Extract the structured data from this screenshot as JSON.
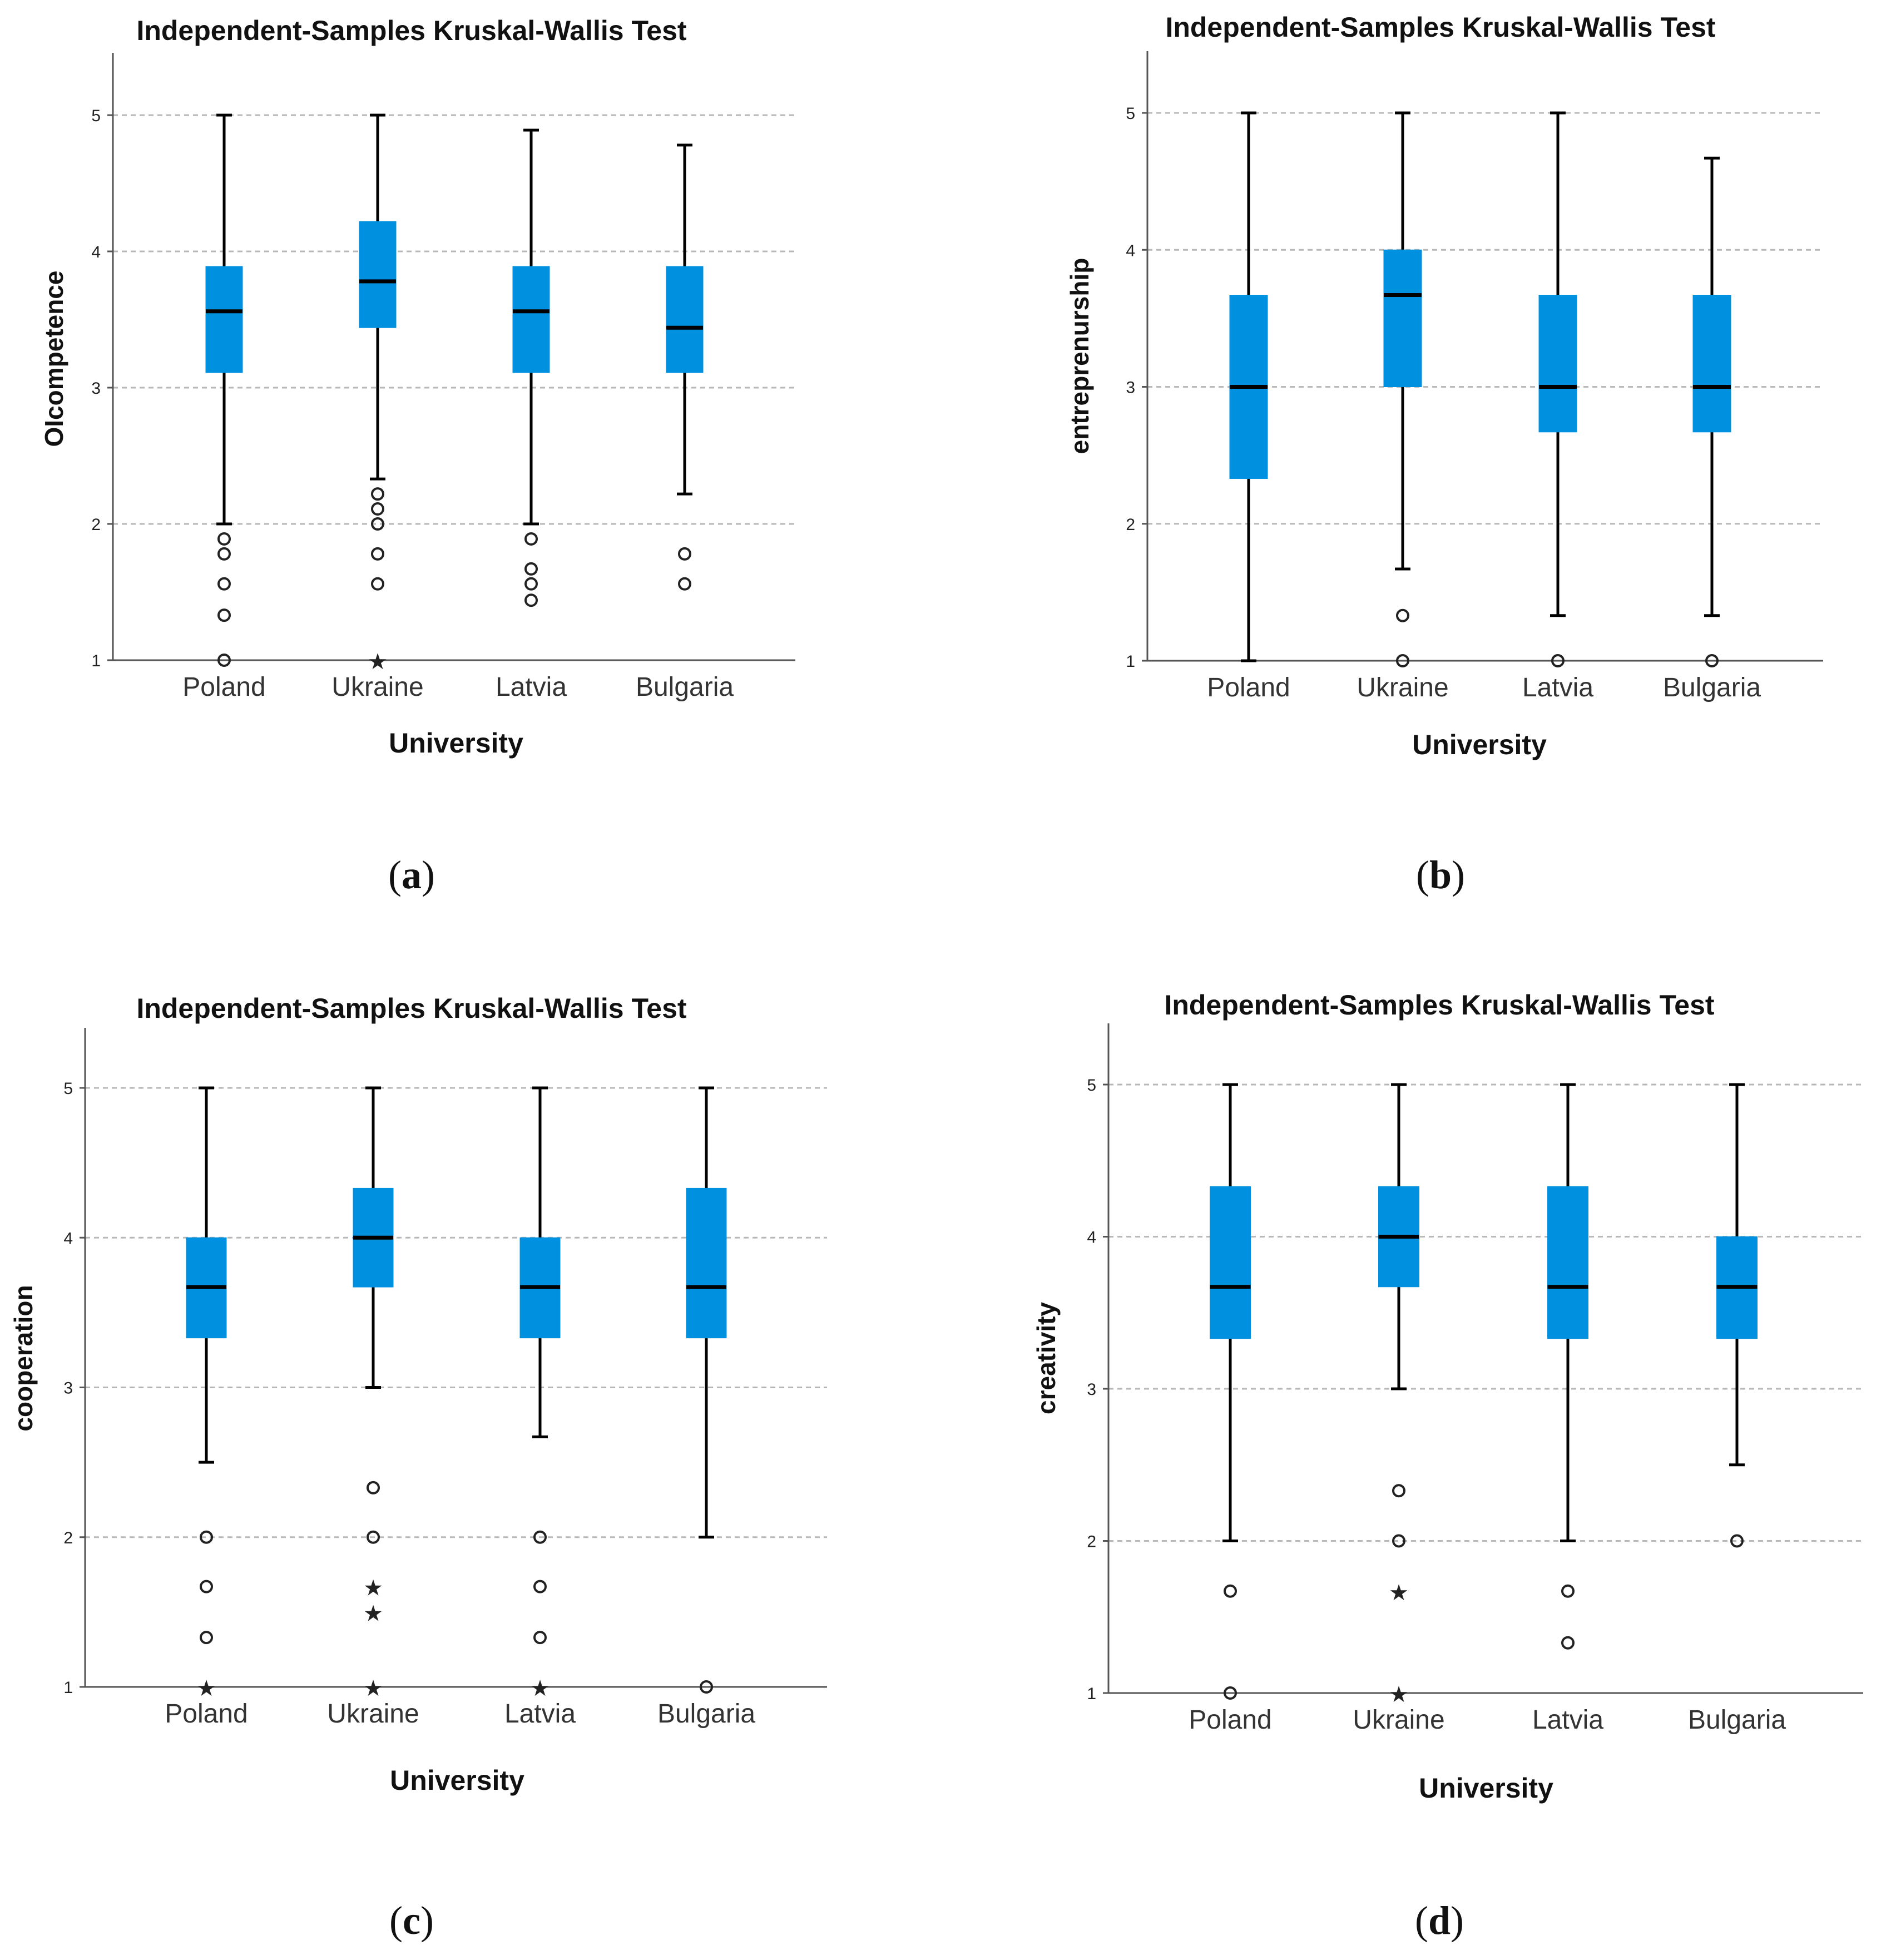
{
  "chart_data": [
    {
      "type": "box",
      "panel": "a",
      "title": "Independent-Samples Kruskal-Wallis Test",
      "xlabel": "University",
      "ylabel": "OIcompetence",
      "ylim": [
        1,
        5.45
      ],
      "yticks": [
        1,
        2,
        3,
        4,
        5
      ],
      "grid": true,
      "box_color": "#0090e0",
      "caption_letter": "a",
      "categories": [
        "Poland",
        "Ukraine",
        "Latvia",
        "Bulgaria"
      ],
      "boxes": [
        {
          "min": 2.0,
          "q1": 3.11,
          "median": 3.56,
          "q3": 3.89,
          "max": 5.0,
          "outliers": [
            1.89,
            1.78,
            1.56,
            1.33,
            1.0
          ],
          "extremes": []
        },
        {
          "min": 2.33,
          "q1": 3.44,
          "median": 3.78,
          "q3": 4.22,
          "max": 5.0,
          "outliers": [
            2.22,
            2.11,
            2.0,
            1.78,
            1.56
          ],
          "extremes": [
            1.0
          ]
        },
        {
          "min": 2.0,
          "q1": 3.11,
          "median": 3.56,
          "q3": 3.89,
          "max": 4.89,
          "outliers": [
            1.89,
            1.67,
            1.56,
            1.44
          ],
          "extremes": []
        },
        {
          "min": 2.22,
          "q1": 3.11,
          "median": 3.44,
          "q3": 3.89,
          "max": 4.78,
          "outliers": [
            1.78,
            1.56
          ],
          "extremes": []
        }
      ]
    },
    {
      "type": "box",
      "panel": "b",
      "title": "Independent-Samples Kruskal-Wallis Test",
      "xlabel": "University",
      "ylabel": "entreprenurship",
      "ylim": [
        1,
        5.45
      ],
      "yticks": [
        1,
        2,
        3,
        4,
        5
      ],
      "grid": true,
      "box_color": "#0090e0",
      "caption_letter": "b",
      "categories": [
        "Poland",
        "Ukraine",
        "Latvia",
        "Bulgaria"
      ],
      "boxes": [
        {
          "min": 1.0,
          "q1": 2.33,
          "median": 3.0,
          "q3": 3.67,
          "max": 5.0,
          "outliers": [],
          "extremes": []
        },
        {
          "min": 1.67,
          "q1": 3.0,
          "median": 3.67,
          "q3": 4.0,
          "max": 5.0,
          "outliers": [
            1.33,
            1.0
          ],
          "extremes": []
        },
        {
          "min": 1.33,
          "q1": 2.67,
          "median": 3.0,
          "q3": 3.67,
          "max": 5.0,
          "outliers": [
            1.0
          ],
          "extremes": []
        },
        {
          "min": 1.33,
          "q1": 2.67,
          "median": 3.0,
          "q3": 3.67,
          "max": 4.67,
          "outliers": [
            1.0
          ],
          "extremes": []
        }
      ]
    },
    {
      "type": "box",
      "panel": "c",
      "title": "Independent-Samples Kruskal-Wallis Test",
      "xlabel": "University",
      "ylabel": "cooperation",
      "ylim": [
        1,
        5.45
      ],
      "yticks": [
        1,
        2,
        3,
        4,
        5
      ],
      "grid": true,
      "box_color": "#0090e0",
      "caption_letter": "c",
      "categories": [
        "Poland",
        "Ukraine",
        "Latvia",
        "Bulgaria"
      ],
      "boxes": [
        {
          "min": 2.5,
          "q1": 3.33,
          "median": 3.67,
          "q3": 4.0,
          "max": 5.0,
          "outliers": [
            2.0,
            1.67,
            1.33
          ],
          "extremes": [
            1.0
          ]
        },
        {
          "min": 3.0,
          "q1": 3.67,
          "median": 4.0,
          "q3": 4.33,
          "max": 5.0,
          "outliers": [
            2.33,
            2.0
          ],
          "extremes": [
            1.67,
            1.5,
            1.0
          ]
        },
        {
          "min": 2.67,
          "q1": 3.33,
          "median": 3.67,
          "q3": 4.0,
          "max": 5.0,
          "outliers": [
            2.0,
            1.67,
            1.33
          ],
          "extremes": [
            1.0
          ]
        },
        {
          "min": 2.0,
          "q1": 3.33,
          "median": 3.67,
          "q3": 4.33,
          "max": 5.0,
          "outliers": [
            1.0
          ],
          "extremes": []
        }
      ]
    },
    {
      "type": "box",
      "panel": "d",
      "title": "Independent-Samples Kruskal-Wallis Test",
      "xlabel": "University",
      "ylabel": "creativity",
      "ylim": [
        1,
        5.45
      ],
      "yticks": [
        1,
        2,
        3,
        4,
        5
      ],
      "grid": true,
      "box_color": "#0090e0",
      "caption_letter": "d",
      "categories": [
        "Poland",
        "Ukraine",
        "Latvia",
        "Bulgaria"
      ],
      "boxes": [
        {
          "min": 2.0,
          "q1": 3.33,
          "median": 3.67,
          "q3": 4.33,
          "max": 5.0,
          "outliers": [
            1.67,
            1.0
          ],
          "extremes": []
        },
        {
          "min": 3.0,
          "q1": 3.67,
          "median": 4.0,
          "q3": 4.33,
          "max": 5.0,
          "outliers": [
            2.33,
            2.0
          ],
          "extremes": [
            1.67,
            1.0
          ]
        },
        {
          "min": 2.0,
          "q1": 3.33,
          "median": 3.67,
          "q3": 4.33,
          "max": 5.0,
          "outliers": [
            1.67,
            1.33
          ],
          "extremes": []
        },
        {
          "min": 2.5,
          "q1": 3.33,
          "median": 3.67,
          "q3": 4.0,
          "max": 5.0,
          "outliers": [
            2.0
          ],
          "extremes": []
        }
      ]
    }
  ]
}
